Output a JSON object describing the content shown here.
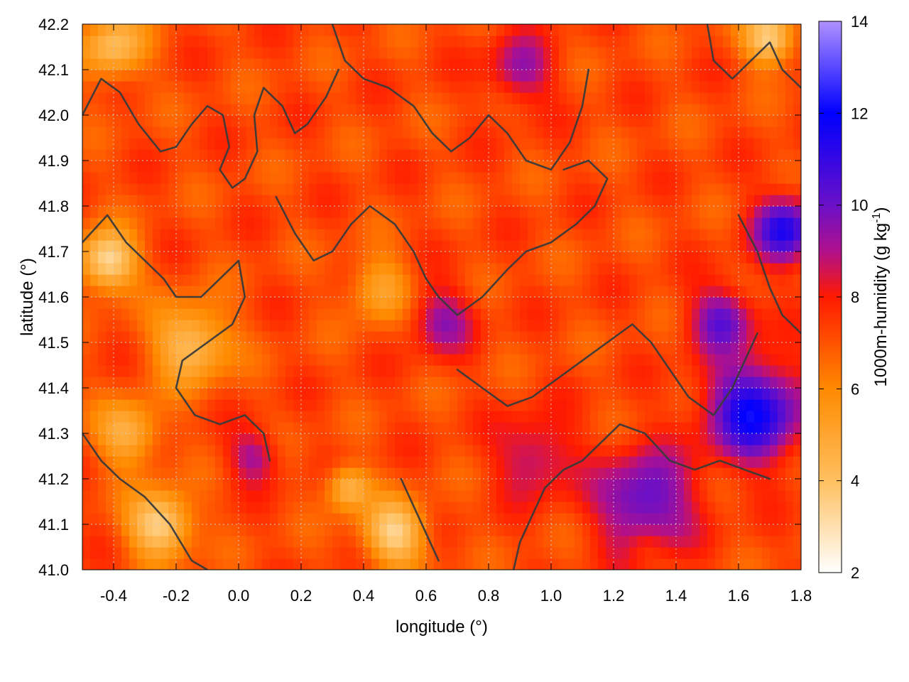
{
  "chart_data": {
    "type": "heatmap",
    "title": "",
    "xlabel": "longitude (°)",
    "ylabel": "latitude (°)",
    "colorbar_label": "1000m-humidity (g kg",
    "colorbar_label_sup": "-1",
    "colorbar_label_end": ")",
    "xlim": [
      -0.5,
      1.8
    ],
    "ylim": [
      41.0,
      42.2
    ],
    "clim": [
      2,
      14
    ],
    "x_ticks": [
      -0.4,
      -0.2,
      0.0,
      0.2,
      0.4,
      0.6,
      0.8,
      1.0,
      1.2,
      1.4,
      1.6,
      1.8
    ],
    "x_tick_labels": [
      "-0.4",
      "-0.2",
      "0.0",
      "0.2",
      "0.4",
      "0.6",
      "0.8",
      "1.0",
      "1.2",
      "1.4",
      "1.6",
      "1.8"
    ],
    "y_ticks": [
      41.0,
      41.1,
      41.2,
      41.3,
      41.4,
      41.5,
      41.6,
      41.7,
      41.8,
      41.9,
      42.0,
      42.1,
      42.2
    ],
    "y_tick_labels": [
      "41.0",
      "41.1",
      "41.2",
      "41.3",
      "41.4",
      "41.5",
      "41.6",
      "41.7",
      "41.8",
      "41.9",
      "42.0",
      "42.1",
      "42.2"
    ],
    "colorbar_ticks": [
      2,
      4,
      6,
      8,
      10,
      12,
      14
    ],
    "colorbar_tick_labels": [
      "2",
      "4",
      "6",
      "8",
      "10",
      "12",
      "14"
    ],
    "colormap": [
      {
        "v": 2,
        "color": "#ffffff"
      },
      {
        "v": 4,
        "color": "#ffc060"
      },
      {
        "v": 6,
        "color": "#ff8a00"
      },
      {
        "v": 8,
        "color": "#ff1a00"
      },
      {
        "v": 9,
        "color": "#b0108c"
      },
      {
        "v": 10,
        "color": "#6a10c8"
      },
      {
        "v": 12,
        "color": "#0000ff"
      },
      {
        "v": 14,
        "color": "#b090ff"
      }
    ],
    "grid": true,
    "field_regions": [
      {
        "lon": -0.42,
        "lat": 41.68,
        "value": 3.0,
        "spread": 0.09
      },
      {
        "lon": -0.4,
        "lat": 42.15,
        "value": 4.2,
        "spread": 0.1
      },
      {
        "lon": -0.15,
        "lat": 41.5,
        "value": 4.0,
        "spread": 0.12
      },
      {
        "lon": -0.25,
        "lat": 41.1,
        "value": 3.2,
        "spread": 0.1
      },
      {
        "lon": -0.35,
        "lat": 41.3,
        "value": 4.5,
        "spread": 0.1
      },
      {
        "lon": 0.5,
        "lat": 41.08,
        "value": 3.5,
        "spread": 0.1
      },
      {
        "lon": 0.35,
        "lat": 41.18,
        "value": 4.3,
        "spread": 0.07
      },
      {
        "lon": 0.45,
        "lat": 41.62,
        "value": 5.0,
        "spread": 0.1
      },
      {
        "lon": 1.7,
        "lat": 42.17,
        "value": 3.3,
        "spread": 0.08
      },
      {
        "lon": 0.05,
        "lat": 41.25,
        "value": 9.2,
        "spread": 0.08
      },
      {
        "lon": 0.65,
        "lat": 41.55,
        "value": 9.3,
        "spread": 0.1
      },
      {
        "lon": 0.9,
        "lat": 42.1,
        "value": 9.4,
        "spread": 0.1
      },
      {
        "lon": 0.95,
        "lat": 41.25,
        "value": 9.2,
        "spread": 0.12
      },
      {
        "lon": 1.3,
        "lat": 41.15,
        "value": 10.5,
        "spread": 0.15
      },
      {
        "lon": 1.65,
        "lat": 41.35,
        "value": 11.8,
        "spread": 0.15
      },
      {
        "lon": 1.75,
        "lat": 41.75,
        "value": 11.2,
        "spread": 0.1
      },
      {
        "lon": 1.55,
        "lat": 41.55,
        "value": 10.2,
        "spread": 0.1
      },
      {
        "lon": 1.3,
        "lat": 41.02,
        "value": 7.5,
        "spread": 0.07
      }
    ],
    "field_base_value": 7.2,
    "contours": [
      [
        [
          -0.5,
          42.0
        ],
        [
          -0.44,
          42.08
        ],
        [
          -0.38,
          42.05
        ],
        [
          -0.32,
          41.98
        ],
        [
          -0.25,
          41.92
        ],
        [
          -0.2,
          41.93
        ],
        [
          -0.15,
          41.98
        ],
        [
          -0.1,
          42.02
        ],
        [
          -0.05,
          42.0
        ],
        [
          -0.03,
          41.93
        ],
        [
          -0.06,
          41.88
        ],
        [
          -0.02,
          41.84
        ],
        [
          0.02,
          41.86
        ],
        [
          0.06,
          41.92
        ],
        [
          0.05,
          42.0
        ],
        [
          0.08,
          42.06
        ],
        [
          0.14,
          42.02
        ],
        [
          0.18,
          41.96
        ],
        [
          0.22,
          41.98
        ],
        [
          0.28,
          42.04
        ],
        [
          0.32,
          42.1
        ]
      ],
      [
        [
          -0.5,
          41.72
        ],
        [
          -0.42,
          41.78
        ],
        [
          -0.36,
          41.72
        ],
        [
          -0.3,
          41.68
        ],
        [
          -0.24,
          41.64
        ],
        [
          -0.2,
          41.6
        ],
        [
          -0.12,
          41.6
        ],
        [
          -0.06,
          41.64
        ],
        [
          0.0,
          41.68
        ],
        [
          0.02,
          41.6
        ],
        [
          -0.02,
          41.54
        ],
        [
          -0.1,
          41.5
        ],
        [
          -0.18,
          41.46
        ],
        [
          -0.2,
          41.4
        ],
        [
          -0.14,
          41.34
        ],
        [
          -0.06,
          41.32
        ],
        [
          0.02,
          41.34
        ],
        [
          0.08,
          41.3
        ],
        [
          0.1,
          41.24
        ]
      ],
      [
        [
          -0.5,
          41.3
        ],
        [
          -0.44,
          41.24
        ],
        [
          -0.38,
          41.2
        ],
        [
          -0.3,
          41.16
        ],
        [
          -0.22,
          41.1
        ],
        [
          -0.15,
          41.02
        ],
        [
          -0.1,
          41.0
        ]
      ],
      [
        [
          0.12,
          41.82
        ],
        [
          0.18,
          41.74
        ],
        [
          0.24,
          41.68
        ],
        [
          0.3,
          41.7
        ],
        [
          0.36,
          41.76
        ],
        [
          0.42,
          41.8
        ],
        [
          0.5,
          41.76
        ],
        [
          0.56,
          41.7
        ],
        [
          0.6,
          41.64
        ],
        [
          0.64,
          41.6
        ],
        [
          0.7,
          41.56
        ],
        [
          0.78,
          41.6
        ],
        [
          0.86,
          41.66
        ],
        [
          0.92,
          41.7
        ],
        [
          1.0,
          41.72
        ],
        [
          1.08,
          41.76
        ],
        [
          1.14,
          41.8
        ],
        [
          1.18,
          41.86
        ],
        [
          1.12,
          41.9
        ],
        [
          1.04,
          41.88
        ]
      ],
      [
        [
          0.3,
          42.2
        ],
        [
          0.34,
          42.12
        ],
        [
          0.4,
          42.08
        ],
        [
          0.48,
          42.06
        ],
        [
          0.56,
          42.02
        ],
        [
          0.62,
          41.96
        ],
        [
          0.68,
          41.92
        ],
        [
          0.74,
          41.95
        ],
        [
          0.8,
          42.0
        ],
        [
          0.86,
          41.96
        ],
        [
          0.92,
          41.9
        ],
        [
          1.0,
          41.88
        ],
        [
          1.06,
          41.94
        ],
        [
          1.1,
          42.02
        ],
        [
          1.12,
          42.1
        ]
      ],
      [
        [
          0.7,
          41.44
        ],
        [
          0.78,
          41.4
        ],
        [
          0.86,
          41.36
        ],
        [
          0.94,
          41.38
        ],
        [
          1.02,
          41.42
        ],
        [
          1.1,
          41.46
        ],
        [
          1.18,
          41.5
        ],
        [
          1.26,
          41.54
        ],
        [
          1.32,
          41.5
        ],
        [
          1.38,
          41.44
        ],
        [
          1.44,
          41.38
        ],
        [
          1.52,
          41.34
        ],
        [
          1.58,
          41.4
        ],
        [
          1.62,
          41.46
        ],
        [
          1.66,
          41.52
        ]
      ],
      [
        [
          0.88,
          41.0
        ],
        [
          0.9,
          41.06
        ],
        [
          0.94,
          41.12
        ],
        [
          0.98,
          41.18
        ],
        [
          1.04,
          41.22
        ],
        [
          1.1,
          41.24
        ],
        [
          1.16,
          41.28
        ],
        [
          1.22,
          41.32
        ],
        [
          1.3,
          41.3
        ],
        [
          1.38,
          41.24
        ],
        [
          1.46,
          41.22
        ],
        [
          1.54,
          41.24
        ],
        [
          1.62,
          41.22
        ],
        [
          1.7,
          41.2
        ]
      ],
      [
        [
          0.52,
          41.2
        ],
        [
          0.56,
          41.14
        ],
        [
          0.6,
          41.08
        ],
        [
          0.64,
          41.02
        ]
      ],
      [
        [
          1.5,
          42.2
        ],
        [
          1.52,
          42.12
        ],
        [
          1.58,
          42.08
        ],
        [
          1.64,
          42.12
        ],
        [
          1.7,
          42.16
        ],
        [
          1.74,
          42.1
        ],
        [
          1.8,
          42.06
        ]
      ],
      [
        [
          1.6,
          41.78
        ],
        [
          1.66,
          41.7
        ],
        [
          1.7,
          41.62
        ],
        [
          1.74,
          41.56
        ],
        [
          1.8,
          41.52
        ]
      ]
    ]
  }
}
